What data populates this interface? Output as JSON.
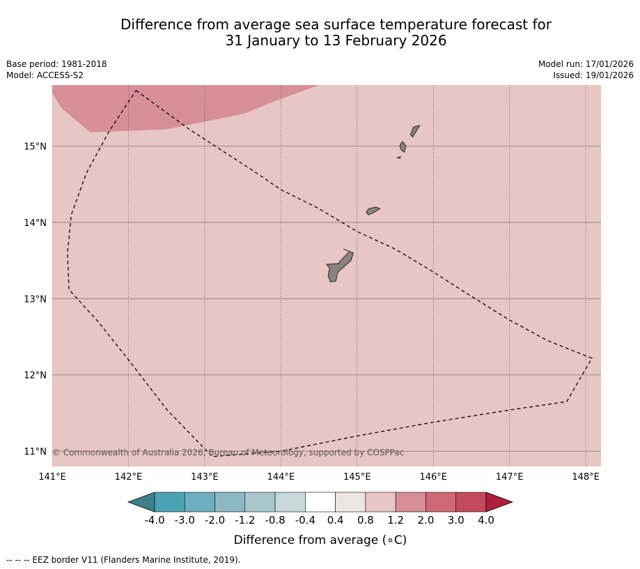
{
  "title": {
    "line1": "Difference from average sea surface temperature forecast for",
    "line2": "31 January to 13 February 2026"
  },
  "meta": {
    "base_period": "Base period: 1981-2018",
    "model": "Model: ACCESS-S2",
    "model_run": "Model run: 17/01/2026",
    "issued": "Issued: 19/01/2026"
  },
  "map": {
    "lon_range": [
      141.0,
      148.2
    ],
    "lat_range": [
      10.8,
      15.8
    ],
    "lon_ticks": [
      141,
      142,
      143,
      144,
      145,
      146,
      147,
      148
    ],
    "lon_labels": [
      "141°E",
      "142°E",
      "143°E",
      "144°E",
      "145°E",
      "146°E",
      "147°E",
      "148°E"
    ],
    "lat_ticks": [
      15,
      14,
      13,
      12,
      11
    ],
    "lat_labels": [
      "15°N",
      "14°N",
      "13°N",
      "12°N",
      "11°N"
    ],
    "background_anomaly_class": "0.8 to 1.2",
    "background_color": "#e8c6c3",
    "warm_region_class": "1.2 to 2.0",
    "warm_region_color": "#d68f97",
    "land_color": "#8a8282",
    "copyright": "© Commonwealth of Australia 2026, Bureau of Meteorology, supported by COSPPac",
    "eez_border": [
      [
        142.1,
        15.73
      ],
      [
        142.8,
        15.22
      ],
      [
        143.6,
        14.7
      ],
      [
        144.0,
        14.43
      ],
      [
        144.5,
        14.18
      ],
      [
        145.0,
        13.88
      ],
      [
        145.5,
        13.65
      ],
      [
        146.0,
        13.35
      ],
      [
        146.5,
        13.03
      ],
      [
        147.0,
        12.72
      ],
      [
        147.5,
        12.45
      ],
      [
        148.08,
        12.22
      ],
      [
        147.75,
        11.65
      ],
      [
        147.0,
        11.54
      ],
      [
        146.0,
        11.38
      ],
      [
        145.0,
        11.2
      ],
      [
        144.0,
        11.0
      ],
      [
        143.1,
        10.93
      ],
      [
        142.5,
        11.55
      ],
      [
        142.0,
        12.2
      ],
      [
        141.6,
        12.7
      ],
      [
        141.22,
        13.12
      ],
      [
        141.2,
        13.6
      ],
      [
        141.25,
        14.1
      ],
      [
        141.45,
        14.65
      ],
      [
        141.75,
        15.2
      ],
      [
        142.1,
        15.73
      ]
    ],
    "warm_region": [
      [
        141.0,
        15.8
      ],
      [
        144.5,
        15.8
      ],
      [
        143.95,
        15.6
      ],
      [
        143.5,
        15.42
      ],
      [
        142.5,
        15.22
      ],
      [
        142.0,
        15.2
      ],
      [
        141.5,
        15.18
      ],
      [
        141.12,
        15.5
      ],
      [
        141.0,
        15.7
      ]
    ],
    "islands": [
      {
        "name": "Guam",
        "coords": [
          [
            144.82,
            13.65
          ],
          [
            144.95,
            13.6
          ],
          [
            144.92,
            13.5
          ],
          [
            144.75,
            13.35
          ],
          [
            144.72,
            13.23
          ],
          [
            144.65,
            13.22
          ],
          [
            144.62,
            13.3
          ],
          [
            144.64,
            13.4
          ],
          [
            144.6,
            13.45
          ],
          [
            144.75,
            13.46
          ],
          [
            144.88,
            13.6
          ],
          [
            144.9,
            13.62
          ]
        ]
      },
      {
        "name": "Rota",
        "coords": [
          [
            145.15,
            14.18
          ],
          [
            145.25,
            14.2
          ],
          [
            145.3,
            14.18
          ],
          [
            145.2,
            14.12
          ],
          [
            145.15,
            14.1
          ],
          [
            145.12,
            14.13
          ]
        ]
      },
      {
        "name": "Tinian",
        "coords": [
          [
            145.6,
            15.06
          ],
          [
            145.64,
            15.0
          ],
          [
            145.62,
            14.92
          ],
          [
            145.58,
            14.95
          ],
          [
            145.56,
            15.0
          ],
          [
            145.58,
            15.04
          ]
        ]
      },
      {
        "name": "Saipan",
        "coords": [
          [
            145.74,
            15.25
          ],
          [
            145.82,
            15.27
          ],
          [
            145.78,
            15.2
          ],
          [
            145.73,
            15.12
          ],
          [
            145.7,
            15.15
          ]
        ]
      },
      {
        "name": "Aguijan",
        "coords": [
          [
            145.53,
            14.85
          ],
          [
            145.57,
            14.86
          ],
          [
            145.56,
            14.84
          ]
        ]
      }
    ]
  },
  "colorbar": {
    "label": "Difference from average (∘C)",
    "ticks": [
      "-4.0",
      "-3.0",
      "-2.0",
      "-1.2",
      "-0.8",
      "-0.4",
      "0.4",
      "0.8",
      "1.2",
      "2.0",
      "3.0",
      "4.0"
    ],
    "under_color": "#3e7f8b",
    "over_color": "#b01f3c",
    "colors": [
      "#4aa3b4",
      "#6eafbf",
      "#8db7c3",
      "#a9c7cc",
      "#c9d8db",
      "#ffffff",
      "#ebe6e3",
      "#e8c6c3",
      "#d68f97",
      "#cd6a76",
      "#c24b5b"
    ]
  },
  "footer": "--  --  -- EEZ border V11 (Flanders Marine Institute, 2019)."
}
